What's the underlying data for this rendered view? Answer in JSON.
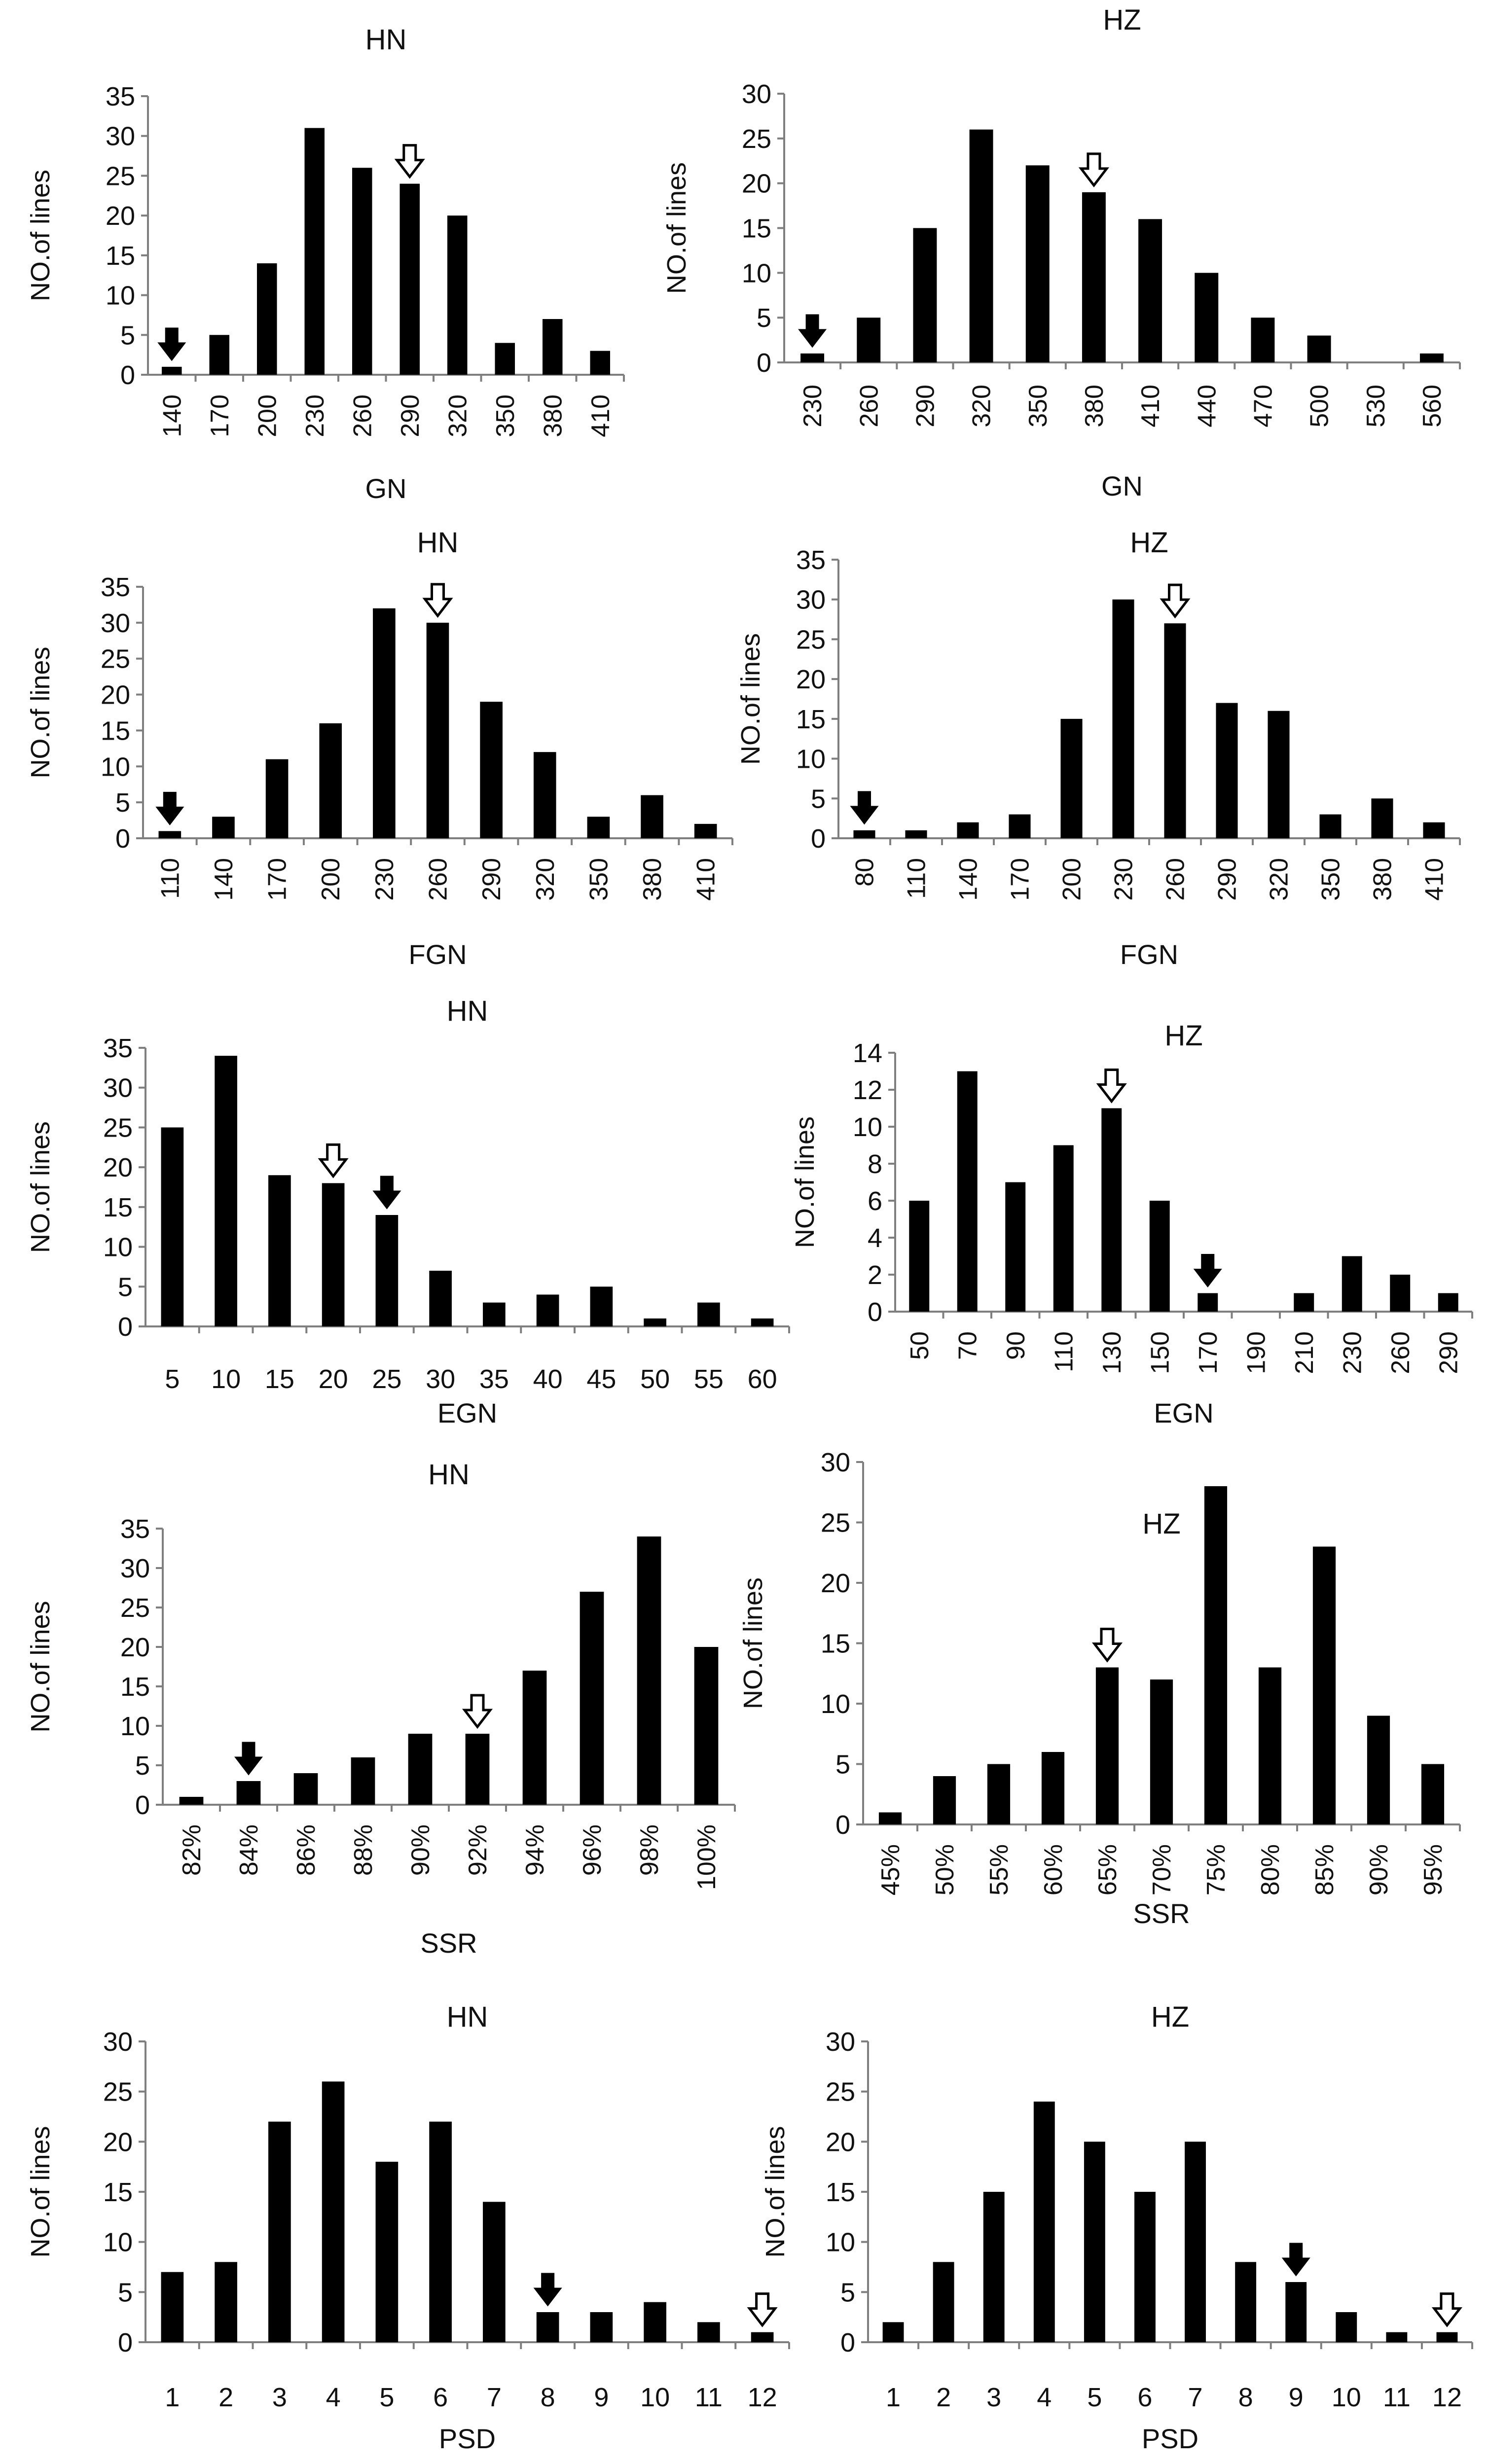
{
  "ylabel": "NO.of lines",
  "colors": {
    "bar": "#000000",
    "axis": "#7f7f7f",
    "text": "#111111",
    "open_arrow": "#ffffff"
  },
  "chart_data": [
    {
      "id": "gn-hn",
      "type": "bar",
      "title": "HN",
      "xlabel": "GN",
      "ylabel": "NO.of lines",
      "ylim": [
        0,
        35
      ],
      "yticks": [
        0,
        5,
        10,
        15,
        20,
        25,
        30,
        35
      ],
      "categories": [
        "140",
        "170",
        "200",
        "230",
        "260",
        "290",
        "320",
        "350",
        "380",
        "410"
      ],
      "values": [
        1,
        5,
        14,
        31,
        26,
        24,
        20,
        4,
        7,
        3
      ],
      "filled_arrow": "140",
      "open_arrow": "290",
      "rotate_ticks": true
    },
    {
      "id": "gn-hz",
      "type": "bar",
      "title": "HZ",
      "xlabel": "GN",
      "ylabel": "NO.of lines",
      "ylim": [
        0,
        30
      ],
      "yticks": [
        0,
        5,
        10,
        15,
        20,
        25,
        30
      ],
      "categories": [
        "230",
        "260",
        "290",
        "320",
        "350",
        "380",
        "410",
        "440",
        "470",
        "500",
        "530",
        "560"
      ],
      "values": [
        1,
        5,
        15,
        26,
        22,
        19,
        16,
        10,
        5,
        3,
        0,
        1
      ],
      "filled_arrow": "230",
      "open_arrow": "380",
      "rotate_ticks": true
    },
    {
      "id": "fgn-hn",
      "type": "bar",
      "title": "HN",
      "xlabel": "FGN",
      "ylabel": "NO.of lines",
      "ylim": [
        0,
        35
      ],
      "yticks": [
        0,
        5,
        10,
        15,
        20,
        25,
        30,
        35
      ],
      "categories": [
        "110",
        "140",
        "170",
        "200",
        "230",
        "260",
        "290",
        "320",
        "350",
        "380",
        "410"
      ],
      "values": [
        1,
        3,
        11,
        16,
        32,
        30,
        19,
        12,
        3,
        6,
        2
      ],
      "filled_arrow": "110",
      "open_arrow": "260",
      "rotate_ticks": true
    },
    {
      "id": "fgn-hz",
      "type": "bar",
      "title": "HZ",
      "xlabel": "FGN",
      "ylabel": "NO.of lines",
      "ylim": [
        0,
        35
      ],
      "yticks": [
        0,
        5,
        10,
        15,
        20,
        25,
        30,
        35
      ],
      "categories": [
        "80",
        "110",
        "140",
        "170",
        "200",
        "230",
        "260",
        "290",
        "320",
        "350",
        "380",
        "410"
      ],
      "values": [
        1,
        1,
        2,
        3,
        15,
        30,
        27,
        17,
        16,
        3,
        5,
        2
      ],
      "filled_arrow": "80",
      "open_arrow": "260",
      "rotate_ticks": true
    },
    {
      "id": "egn-hn",
      "type": "bar",
      "title": "HN",
      "xlabel": "EGN",
      "ylabel": "NO.of lines",
      "ylim": [
        0,
        35
      ],
      "yticks": [
        0,
        5,
        10,
        15,
        20,
        25,
        30,
        35
      ],
      "categories": [
        "5",
        "10",
        "15",
        "20",
        "25",
        "30",
        "35",
        "40",
        "45",
        "50",
        "55",
        "60"
      ],
      "values": [
        25,
        34,
        19,
        18,
        14,
        7,
        3,
        4,
        5,
        1,
        3,
        1
      ],
      "filled_arrow": "25",
      "open_arrow": "20",
      "rotate_ticks": false
    },
    {
      "id": "egn-hz",
      "type": "bar",
      "title": "HZ",
      "xlabel": "EGN",
      "ylabel": "NO.of lines",
      "ylim": [
        0,
        14
      ],
      "yticks": [
        0,
        2,
        4,
        6,
        8,
        10,
        12,
        14
      ],
      "categories": [
        "50",
        "70",
        "90",
        "110",
        "130",
        "150",
        "170",
        "190",
        "210",
        "230",
        "260",
        "290"
      ],
      "values": [
        6,
        13,
        7,
        9,
        11,
        6,
        1,
        0,
        1,
        3,
        2,
        1
      ],
      "filled_arrow": "170",
      "open_arrow": "130",
      "rotate_ticks": true
    },
    {
      "id": "ssr-hn",
      "type": "bar",
      "title": "HN",
      "xlabel": "SSR",
      "ylabel": "NO.of lines",
      "ylim": [
        0,
        35
      ],
      "yticks": [
        0,
        5,
        10,
        15,
        20,
        25,
        30,
        35
      ],
      "categories": [
        "82%",
        "84%",
        "86%",
        "88%",
        "90%",
        "92%",
        "94%",
        "96%",
        "98%",
        "100%"
      ],
      "values": [
        1,
        3,
        4,
        6,
        9,
        9,
        17,
        27,
        34,
        20
      ],
      "filled_arrow": "84%",
      "open_arrow": "92%",
      "rotate_ticks": true
    },
    {
      "id": "ssr-hz",
      "type": "bar",
      "title": "HZ",
      "xlabel": "SSR",
      "ylabel": "NO.of lines",
      "ylim": [
        0,
        30
      ],
      "yticks": [
        0,
        5,
        10,
        15,
        20,
        25,
        30
      ],
      "categories": [
        "45%",
        "50%",
        "55%",
        "60%",
        "65%",
        "70%",
        "75%",
        "80%",
        "85%",
        "90%",
        "95%"
      ],
      "values": [
        1,
        4,
        5,
        6,
        13,
        12,
        28,
        13,
        23,
        9,
        5
      ],
      "filled_arrow": null,
      "open_arrow": "65%",
      "rotate_ticks": true
    },
    {
      "id": "psd-hn",
      "type": "bar",
      "title": "HN",
      "xlabel": "PSD",
      "ylabel": "NO.of lines",
      "ylim": [
        0,
        30
      ],
      "yticks": [
        0,
        5,
        10,
        15,
        20,
        25,
        30
      ],
      "categories": [
        "1",
        "2",
        "3",
        "4",
        "5",
        "6",
        "7",
        "8",
        "9",
        "10",
        "11",
        "12"
      ],
      "values": [
        7,
        8,
        22,
        26,
        18,
        22,
        14,
        3,
        3,
        4,
        2,
        1
      ],
      "filled_arrow": "8",
      "open_arrow": "12",
      "rotate_ticks": false
    },
    {
      "id": "psd-hz",
      "type": "bar",
      "title": "HZ",
      "xlabel": "PSD",
      "ylabel": "NO.of lines",
      "ylim": [
        0,
        30
      ],
      "yticks": [
        0,
        5,
        10,
        15,
        20,
        25,
        30
      ],
      "categories": [
        "1",
        "2",
        "3",
        "4",
        "5",
        "6",
        "7",
        "8",
        "9",
        "10",
        "11",
        "12"
      ],
      "values": [
        2,
        8,
        15,
        24,
        20,
        15,
        20,
        8,
        6,
        3,
        1,
        1
      ],
      "filled_arrow": "9",
      "open_arrow": "12",
      "rotate_ticks": false
    }
  ]
}
